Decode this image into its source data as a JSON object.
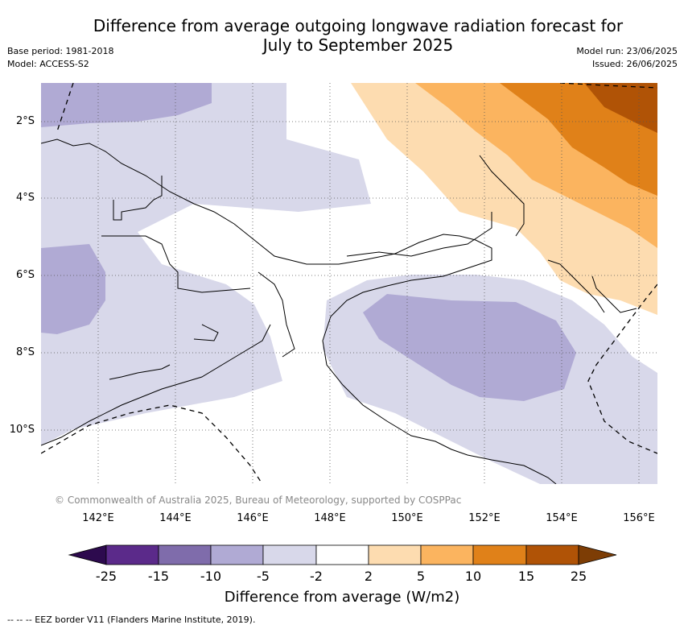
{
  "title_line1": "Difference from average outgoing longwave radiation forecast for",
  "title_line2": "July to September 2025",
  "base_period": "Base period: 1981-2018",
  "model": "Model: ACCESS-S2",
  "model_run": "Model run: 23/06/2025",
  "issued": "Issued: 26/06/2025",
  "lat_labels": [
    "2°S",
    "4°S",
    "6°S",
    "8°S",
    "10°S"
  ],
  "lon_labels": [
    "142°E",
    "144°E",
    "146°E",
    "148°E",
    "150°E",
    "152°E",
    "154°E",
    "156°E"
  ],
  "copyright": "© Commonwealth of Australia 2025, Bureau of Meteorology, supported by COSPPac",
  "colorbar": {
    "ticks": [
      "-25",
      "-15",
      "-10",
      "-5",
      "-2",
      "2",
      "5",
      "10",
      "15",
      "25"
    ],
    "colors": [
      "#2d0a4e",
      "#5b2a8a",
      "#7f6cab",
      "#b0aad4",
      "#d8d8ea",
      "#ffffff",
      "#fddcb0",
      "#fbb45f",
      "#e08119",
      "#b05306",
      "#7d3d05"
    ],
    "title": "Difference from average (W/m2)"
  },
  "eez_note": "--  --  -- EEZ border V11 (Flanders Marine Institute, 2019)."
}
